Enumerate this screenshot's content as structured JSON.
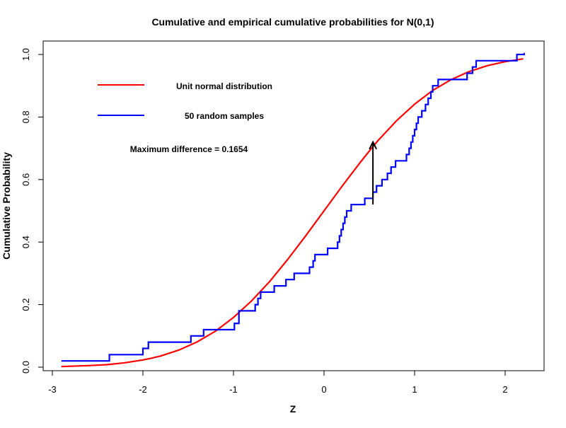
{
  "chart_data": {
    "type": "line",
    "title": "Cumulative and empirical cumulative probabilities for N(0,1)",
    "xlabel": "Z",
    "ylabel": "Cumulative Probability",
    "xlim": [
      -3.0,
      2.4
    ],
    "ylim": [
      0.0,
      1.0
    ],
    "x_ticks": [
      -3,
      -2,
      -1,
      0,
      1,
      2
    ],
    "y_ticks": [
      0.0,
      0.2,
      0.4,
      0.6,
      0.8,
      1.0
    ],
    "x_tick_labels": [
      "-3",
      "-2",
      "-1",
      "0",
      "1",
      "2"
    ],
    "y_tick_labels": [
      "0.0",
      "0.2",
      "0.4",
      "0.6",
      "0.8",
      "1.0"
    ],
    "grid": false,
    "legend_position": "top-left",
    "series": [
      {
        "name": "Unit normal distribution",
        "color": "#ff0000",
        "style": "smooth",
        "x": [
          -2.9,
          -2.8,
          -2.6,
          -2.4,
          -2.2,
          -2.0,
          -1.9,
          -1.8,
          -1.6,
          -1.4,
          -1.2,
          -1.0,
          -0.8,
          -0.6,
          -0.4,
          -0.2,
          0.0,
          0.2,
          0.4,
          0.55,
          0.6,
          0.8,
          1.0,
          1.2,
          1.4,
          1.6,
          1.8,
          2.0,
          2.2
        ],
        "y": [
          0.002,
          0.003,
          0.005,
          0.008,
          0.014,
          0.023,
          0.029,
          0.036,
          0.055,
          0.081,
          0.115,
          0.159,
          0.212,
          0.274,
          0.345,
          0.421,
          0.5,
          0.579,
          0.655,
          0.709,
          0.726,
          0.788,
          0.841,
          0.885,
          0.919,
          0.945,
          0.964,
          0.977,
          0.986
        ]
      },
      {
        "name": "50 random samples",
        "color": "#0000ff",
        "style": "step",
        "x": [
          -2.9,
          -2.37,
          -2.0,
          -1.94,
          -1.47,
          -1.33,
          -0.99,
          -0.94,
          -0.76,
          -0.73,
          -0.7,
          -0.55,
          -0.42,
          -0.33,
          -0.16,
          -0.12,
          -0.1,
          0.04,
          0.15,
          0.17,
          0.19,
          0.21,
          0.23,
          0.25,
          0.3,
          0.45,
          0.54,
          0.58,
          0.64,
          0.7,
          0.74,
          0.79,
          0.91,
          0.94,
          0.96,
          0.98,
          1.0,
          1.02,
          1.04,
          1.08,
          1.12,
          1.15,
          1.18,
          1.2,
          1.26,
          1.58,
          1.64,
          1.68,
          2.13,
          2.21
        ],
        "y": [
          0.02,
          0.04,
          0.06,
          0.08,
          0.1,
          0.12,
          0.14,
          0.18,
          0.2,
          0.22,
          0.24,
          0.26,
          0.28,
          0.3,
          0.32,
          0.34,
          0.36,
          0.38,
          0.4,
          0.42,
          0.44,
          0.46,
          0.48,
          0.5,
          0.52,
          0.54,
          0.56,
          0.58,
          0.6,
          0.62,
          0.64,
          0.66,
          0.68,
          0.7,
          0.72,
          0.74,
          0.76,
          0.78,
          0.8,
          0.82,
          0.84,
          0.86,
          0.88,
          0.9,
          0.92,
          0.94,
          0.96,
          0.98,
          1.0,
          1.0
        ],
        "x_end": 2.21
      }
    ],
    "annotations": [
      {
        "text": "Maximum difference = 0.1654",
        "arrow": {
          "x": 0.54,
          "y_from": 0.52,
          "y_to": 0.72,
          "color": "#000000"
        }
      }
    ]
  }
}
